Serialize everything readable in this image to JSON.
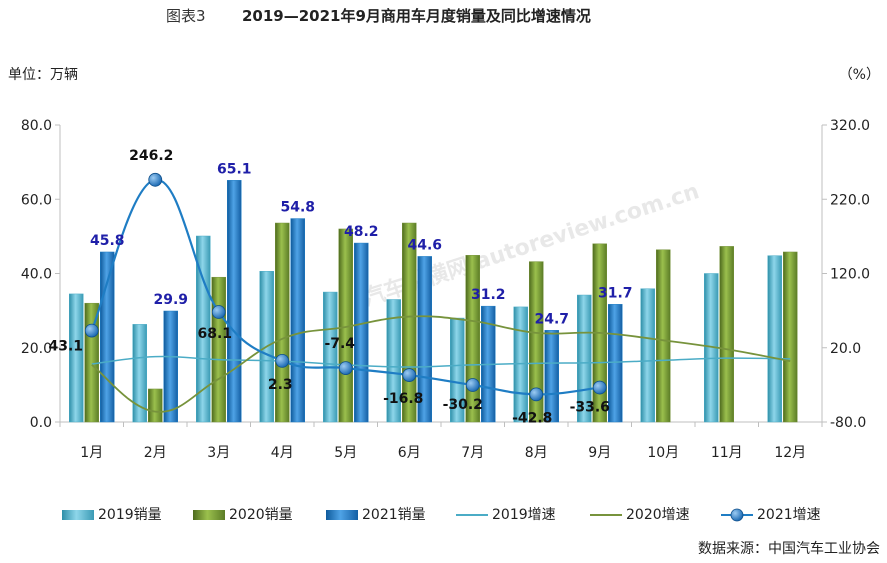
{
  "chart_data": {
    "type": "bar",
    "title_prefix": "图表3",
    "title": "2019—2021年9月商用车月度销量及同比增速情况",
    "left_unit": "单位：万辆",
    "right_unit": "（%）",
    "source": "数据来源：中国汽车工业协会",
    "categories": [
      "1月",
      "2月",
      "3月",
      "4月",
      "5月",
      "6月",
      "7月",
      "8月",
      "9月",
      "10月",
      "11月",
      "12月"
    ],
    "ylim": [
      0,
      80
    ],
    "y_ticks": [
      "0.0",
      "20.0",
      "40.0",
      "60.0",
      "80.0"
    ],
    "y2lim": [
      -80,
      320
    ],
    "y2_ticks": [
      "-80.0",
      "20.0",
      "120.0",
      "220.0",
      "320.0"
    ],
    "bar_series": [
      {
        "name": "2019销量",
        "color": "#4BACC6",
        "values": [
          34.5,
          26.3,
          50.1,
          40.6,
          35.0,
          33.0,
          28.0,
          31.0,
          34.2,
          35.9,
          40.0,
          44.8
        ]
      },
      {
        "name": "2020销量",
        "color": "#77933C",
        "values": [
          32.0,
          8.9,
          39.0,
          53.6,
          52.0,
          53.6,
          44.9,
          43.2,
          48.0,
          46.4,
          47.3,
          45.8
        ]
      },
      {
        "name": "2021销量",
        "color": "#1F7DC4",
        "values": [
          45.8,
          29.9,
          65.1,
          54.8,
          48.2,
          44.6,
          31.2,
          24.7,
          31.7,
          null,
          null,
          null
        ]
      }
    ],
    "bar_labels_2021": [
      "45.8",
      "29.9",
      "65.1",
      "54.8",
      "48.2",
      "44.6",
      "31.2",
      "24.7",
      "31.7"
    ],
    "line_series": [
      {
        "name": "2019增速",
        "color": "#4BACC6",
        "values": [
          -2,
          8,
          4,
          2,
          -3,
          -6,
          -3,
          -1,
          0,
          3,
          6,
          5
        ]
      },
      {
        "name": "2020增速",
        "color": "#77933C",
        "values": [
          -3,
          -66,
          -22,
          32,
          48,
          62,
          56,
          40,
          40,
          30,
          18,
          2
        ]
      },
      {
        "name": "2021增速",
        "color": "#1F7DC4",
        "values": [
          43.1,
          246.2,
          68.1,
          2.3,
          -7.4,
          -16.8,
          -30.2,
          -42.8,
          -33.6,
          null,
          null,
          null
        ]
      }
    ],
    "growth_labels_2021": [
      "43.1",
      "246.2",
      "68.1",
      "2.3",
      "-7.4",
      "-16.8",
      "-30.2",
      "-42.8",
      "-33.6"
    ],
    "legend_position": "bottom",
    "watermark": "汽车纵横网 autoreview.com.cn"
  }
}
